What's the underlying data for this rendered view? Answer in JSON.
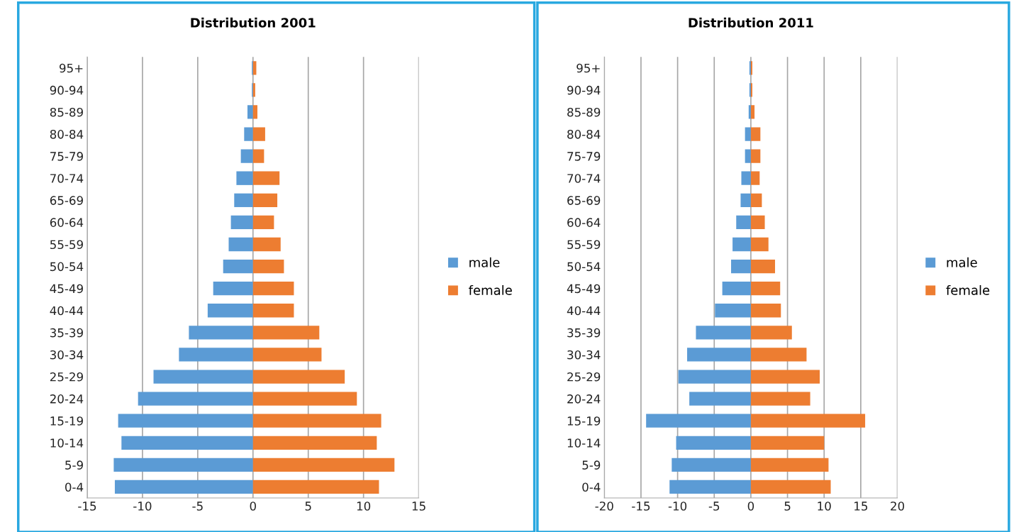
{
  "chart_data": [
    {
      "type": "bar",
      "title": "Distribution 2001",
      "orientation": "horizontal",
      "stacked": true,
      "categories": [
        "95+",
        "90-94",
        "85-89",
        "80-84",
        "75-79",
        "70-74",
        "65-69",
        "60-64",
        "55-59",
        "50-54",
        "45-49",
        "40-44",
        "35-39",
        "30-34",
        "25-29",
        "20-24",
        "15-19",
        "10-14",
        "5-9",
        "0-4"
      ],
      "series": [
        {
          "name": "male",
          "color": "#5b9bd5",
          "values": [
            -0.1,
            -0.1,
            -0.5,
            -0.8,
            -1.1,
            -1.5,
            -1.7,
            -2.0,
            -2.2,
            -2.7,
            -3.6,
            -4.1,
            -5.8,
            -6.7,
            -9.0,
            -10.4,
            -12.2,
            -11.9,
            -12.6,
            -12.5
          ]
        },
        {
          "name": "female",
          "color": "#ed7d31",
          "values": [
            0.3,
            0.2,
            0.4,
            1.1,
            1.0,
            2.4,
            2.2,
            1.9,
            2.5,
            2.8,
            3.7,
            3.7,
            6.0,
            6.2,
            8.3,
            9.4,
            11.6,
            11.2,
            12.8,
            11.4
          ]
        }
      ],
      "xlim": [
        -15,
        15
      ],
      "xticks": [
        -15,
        -10,
        -5,
        0,
        5,
        10,
        15
      ],
      "grid": "x",
      "legend": "right"
    },
    {
      "type": "bar",
      "title": "Distribution 2011",
      "orientation": "horizontal",
      "stacked": true,
      "categories": [
        "95+",
        "90-94",
        "85-89",
        "80-84",
        "75-79",
        "70-74",
        "65-69",
        "60-64",
        "55-59",
        "50-54",
        "45-49",
        "40-44",
        "35-39",
        "30-34",
        "25-29",
        "20-24",
        "15-19",
        "10-14",
        "5-9",
        "0-4"
      ],
      "series": [
        {
          "name": "male",
          "color": "#5b9bd5",
          "values": [
            -0.2,
            -0.2,
            -0.3,
            -0.8,
            -0.8,
            -1.3,
            -1.4,
            -2.0,
            -2.5,
            -2.7,
            -3.9,
            -4.9,
            -7.5,
            -8.7,
            -9.9,
            -8.4,
            -14.3,
            -10.2,
            -10.8,
            -11.1
          ]
        },
        {
          "name": "female",
          "color": "#ed7d31",
          "values": [
            0.2,
            0.2,
            0.5,
            1.3,
            1.3,
            1.2,
            1.5,
            1.9,
            2.4,
            3.3,
            4.0,
            4.1,
            5.6,
            7.6,
            9.4,
            8.1,
            15.6,
            10.0,
            10.6,
            10.9
          ]
        }
      ],
      "xlim": [
        -20,
        20
      ],
      "xticks": [
        -20,
        -15,
        -10,
        -5,
        0,
        5,
        10,
        15,
        20
      ],
      "grid": "x",
      "legend": "right"
    }
  ]
}
